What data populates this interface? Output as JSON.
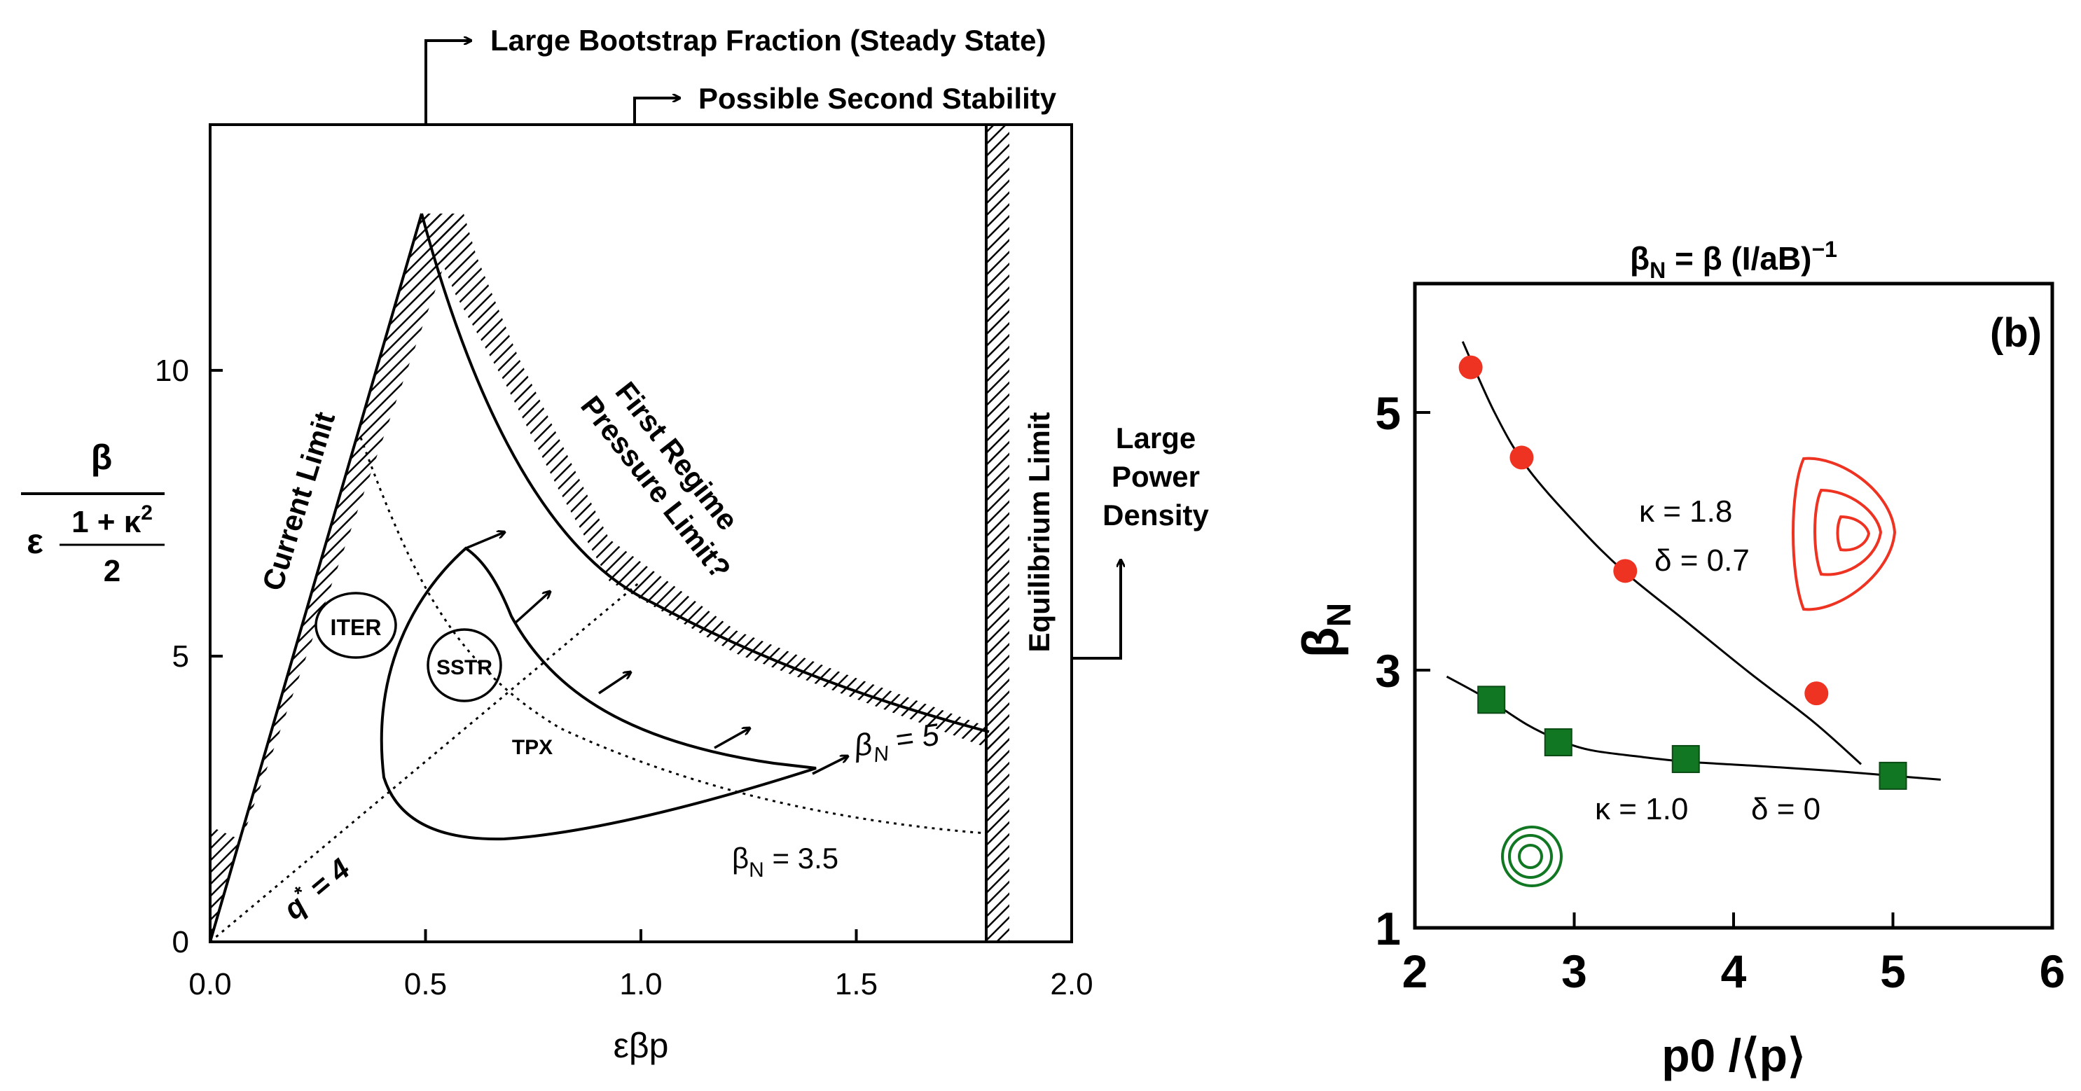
{
  "chart_data": [
    {
      "type": "line",
      "panel": "left",
      "title": "",
      "xlabel": "εβp",
      "ylabel": "β / (ε (1+κ²)/2)",
      "ylabel_parts": {
        "num": "β",
        "eps": "ε",
        "frac_num": "1 + κ",
        "sup": "2",
        "frac_den": "2"
      },
      "xlim": [
        0.0,
        2.0
      ],
      "ylim": [
        0,
        14.3
      ],
      "x_ticks": [
        "0.0",
        "0.5",
        "1.0",
        "1.5",
        "2.0"
      ],
      "y_ticks": [
        "0",
        "5",
        "10"
      ],
      "top_annotations": {
        "bootstrap": "Large Bootstrap Fraction (Steady State)",
        "second_stability": "Possible Second Stability"
      },
      "side_annotations": {
        "power_density": [
          "Large",
          "Power",
          "Density"
        ]
      },
      "labels": {
        "current_limit": "Current Limit",
        "pressure_limit_1": "First Regime",
        "pressure_limit_2": "Pressure Limit?",
        "equilibrium_limit": "Equilibrium Limit",
        "iter": "ITER",
        "sstr": "SSTR",
        "tpx": "TPX",
        "bn5_base": "β",
        "bn5_sub": "N",
        "bn5_val": " = 5",
        "bn35_base": "β",
        "bn35_sub": "N",
        "bn35_val": " = 3.5",
        "q_base": "q",
        "q_sup": "*",
        "q_val": " = 4"
      },
      "series": [
        {
          "name": "Current Limit",
          "x": [
            0.0,
            0.5
          ],
          "y": [
            0.0,
            12.6
          ]
        },
        {
          "name": "First Regime Pressure Limit",
          "x": [
            0.5,
            0.6,
            0.7,
            0.9,
            1.1,
            1.3,
            1.5,
            1.7,
            1.8
          ],
          "y": [
            12.6,
            10.2,
            8.9,
            6.9,
            5.5,
            4.8,
            4.3,
            3.9,
            3.65
          ]
        },
        {
          "name": "Equilibrium Limit",
          "x": [
            1.8,
            1.8
          ],
          "y": [
            0,
            14.3
          ]
        },
        {
          "name": "βN = 3.5",
          "x": [
            0.35,
            0.6,
            0.8,
            1.0,
            1.3,
            1.6,
            1.8
          ],
          "y": [
            8.8,
            5.0,
            3.9,
            3.2,
            2.4,
            2.0,
            1.8
          ]
        },
        {
          "name": "q* = 4",
          "x": [
            0.0,
            1.0
          ],
          "y": [
            0.0,
            6.0
          ]
        },
        {
          "name": "Operating path",
          "x": [
            0.6,
            0.42,
            0.5,
            0.7,
            1.1,
            1.4,
            1.15,
            0.9,
            0.6
          ],
          "y": [
            6.6,
            4.5,
            2.5,
            1.8,
            2.1,
            2.9,
            3.5,
            4.6,
            6.6
          ]
        }
      ],
      "arrows": {
        "x": [
          0.6,
          0.72,
          0.9,
          1.15,
          1.4
        ],
        "y": [
          6.6,
          5.65,
          4.5,
          3.6,
          3.2
        ]
      }
    },
    {
      "type": "scatter",
      "panel": "right",
      "panel_label": "(b)",
      "title": "βN = β (I/aB)⁻¹",
      "title_parts": {
        "lhs": "β",
        "lhs_sub": "N",
        "rhs": " = β (I/aB)",
        "rhs_sup": "−1"
      },
      "xlabel": "p0 /⟨p⟩",
      "ylabel": "βN",
      "ylabel_parts": {
        "base": "β",
        "sub": "N"
      },
      "xlim": [
        2,
        6
      ],
      "ylim": [
        1,
        6
      ],
      "x_ticks": [
        "2",
        "3",
        "4",
        "5",
        "6"
      ],
      "y_ticks": [
        "1",
        "3",
        "5"
      ],
      "series": [
        {
          "name": "κ = 1.8  δ = 0.7",
          "color": "#ee3322",
          "marker": "circle",
          "x": [
            2.35,
            2.67,
            3.32,
            4.52
          ],
          "y": [
            5.35,
            4.65,
            3.77,
            2.82
          ],
          "fit": {
            "x": [
              2.3,
              2.5,
              2.7,
              3.0,
              3.3,
              3.7,
              4.1,
              4.5,
              4.8
            ],
            "y": [
              5.55,
              5.0,
              4.58,
              4.15,
              3.78,
              3.38,
              2.98,
              2.6,
              2.27
            ]
          },
          "label_kappa": "κ = 1.8",
          "label_delta": "δ = 0.7"
        },
        {
          "name": "κ = 1.0  δ = 0",
          "color": "#117722",
          "marker": "square",
          "x": [
            2.48,
            2.9,
            3.7,
            5.0
          ],
          "y": [
            2.77,
            2.44,
            2.31,
            2.18
          ],
          "fit": {
            "x": [
              2.2,
              2.45,
              2.7,
              2.9,
              3.1,
              3.4,
              3.7,
              4.1,
              4.6,
              5.0,
              5.3
            ],
            "y": [
              2.95,
              2.78,
              2.58,
              2.46,
              2.38,
              2.33,
              2.29,
              2.26,
              2.22,
              2.18,
              2.15
            ]
          },
          "label_kappa": "κ = 1.0",
          "label_delta": "δ = 0"
        }
      ]
    }
  ]
}
